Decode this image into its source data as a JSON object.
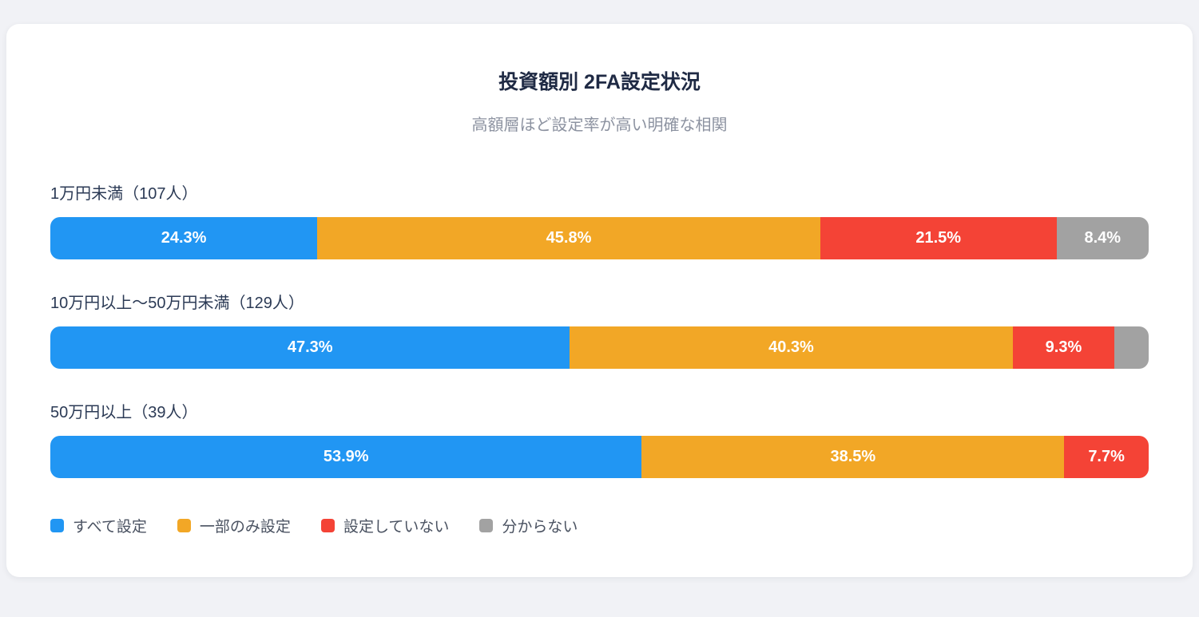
{
  "chart_data": {
    "type": "bar",
    "stacked": true,
    "orientation": "horizontal",
    "title": "投資額別 2FA設定状況",
    "subtitle": "高額層ほど設定率が高い明確な相関",
    "value_unit": "%",
    "xlim": [
      0,
      100
    ],
    "grid": false,
    "legend_position": "bottom-left",
    "series_colors": {
      "blue": "#2196F3",
      "orange": "#F2A726",
      "red": "#F44336",
      "gray": "#A2A2A2"
    },
    "legend": [
      {
        "label": "すべて設定",
        "color": "#2196F3"
      },
      {
        "label": "一部のみ設定",
        "color": "#F2A726"
      },
      {
        "label": "設定していない",
        "color": "#F44336"
      },
      {
        "label": "分からない",
        "color": "#A2A2A2"
      }
    ],
    "rows": [
      {
        "label": "1万円未満（107人）",
        "segments": [
          {
            "series": "すべて設定",
            "value": 24.3,
            "label": "24.3%",
            "color": "#2196F3"
          },
          {
            "series": "一部のみ設定",
            "value": 45.8,
            "label": "45.8%",
            "color": "#F2A726"
          },
          {
            "series": "設定していない",
            "value": 21.5,
            "label": "21.5%",
            "color": "#F44336"
          },
          {
            "series": "分からない",
            "value": 8.4,
            "label": "8.4%",
            "color": "#A2A2A2"
          }
        ]
      },
      {
        "label": "10万円以上〜50万円未満（129人）",
        "segments": [
          {
            "series": "すべて設定",
            "value": 47.3,
            "label": "47.3%",
            "color": "#2196F3"
          },
          {
            "series": "一部のみ設定",
            "value": 40.3,
            "label": "40.3%",
            "color": "#F2A726"
          },
          {
            "series": "設定していない",
            "value": 9.3,
            "label": "9.3%",
            "color": "#F44336"
          },
          {
            "series": "分からない",
            "value": 3.1,
            "label": "",
            "color": "#A2A2A2"
          }
        ]
      },
      {
        "label": "50万円以上（39人）",
        "segments": [
          {
            "series": "すべて設定",
            "value": 53.9,
            "label": "53.9%",
            "color": "#2196F3"
          },
          {
            "series": "一部のみ設定",
            "value": 38.5,
            "label": "38.5%",
            "color": "#F2A726"
          },
          {
            "series": "設定していない",
            "value": 7.7,
            "label": "7.7%",
            "color": "#F44336"
          }
        ]
      }
    ]
  }
}
